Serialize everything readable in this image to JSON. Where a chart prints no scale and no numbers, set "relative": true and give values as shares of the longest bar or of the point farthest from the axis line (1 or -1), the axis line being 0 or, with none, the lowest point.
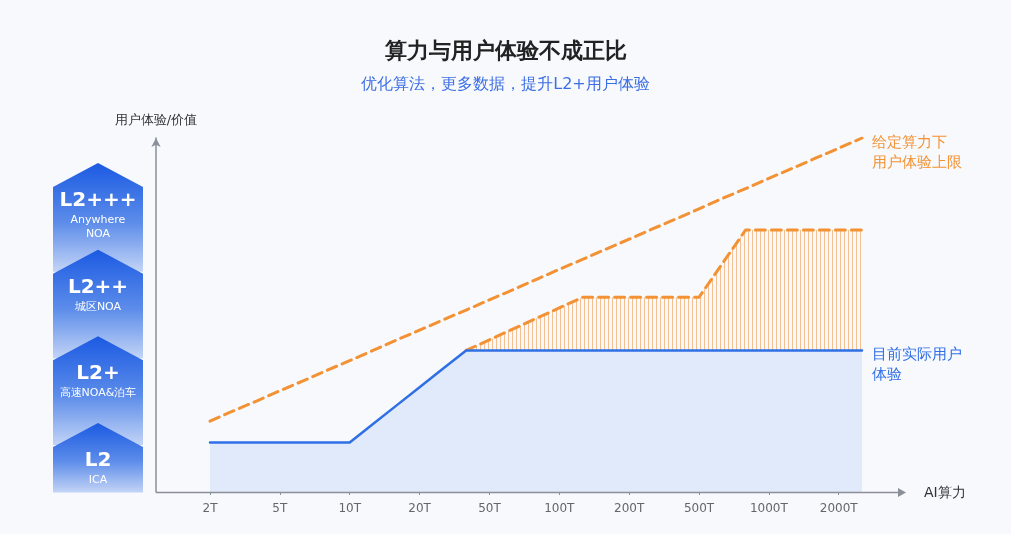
{
  "chart_data": {
    "type": "area",
    "relative": true,
    "title": "算力与用户体验不成正比",
    "subtitle": "优化算法，更多数据，提升L2+用户体验",
    "xlabel": "AI算力",
    "ylabel": "用户体验/价值",
    "categories": [
      "2T",
      null,
      null,
      "5T",
      null,
      null,
      "10T",
      null,
      null,
      "20T",
      null,
      null,
      "50T",
      null,
      null,
      "100T",
      null,
      null,
      "200T",
      null,
      null,
      "500T",
      null,
      null,
      "1000T",
      null,
      null,
      "2000T",
      null
    ],
    "series": [
      {
        "color": "#f39234",
        "line_style": "dashed",
        "values": [
          null,
          null,
          null,
          null,
          null,
          null,
          null,
          null,
          null,
          null,
          null,
          0.4,
          0.43,
          0.46,
          0.49,
          0.52,
          0.55,
          0.55,
          0.55,
          0.55,
          0.55,
          0.55,
          0.645,
          0.74,
          0.74,
          0.74,
          0.74,
          0.74,
          0.74
        ]
      },
      {
        "name": "目前实际用户体验",
        "color": "#2f6fe6",
        "line_style": "solid",
        "values": [
          0.14,
          0.14,
          0.14,
          0.14,
          0.14,
          0.14,
          0.14,
          0.192,
          0.244,
          0.296,
          0.348,
          0.4,
          0.4,
          0.4,
          0.4,
          0.4,
          0.4,
          0.4,
          0.4,
          0.4,
          0.4,
          0.4,
          0.4,
          0.4,
          0.4,
          0.4,
          0.4,
          0.4,
          0.4
        ]
      },
      {
        "type": "line",
        "name": "给定算力下用户体验上限",
        "color": "#f39234",
        "line_style": "dashed",
        "values": [
          0.2,
          0.229,
          0.257,
          0.286,
          0.314,
          0.343,
          0.371,
          0.4,
          0.429,
          0.457,
          0.486,
          0.514,
          0.543,
          0.571,
          0.6,
          0.629,
          0.657,
          0.686,
          0.714,
          0.743,
          0.771,
          0.8,
          0.829,
          0.857,
          0.886,
          0.914,
          0.943,
          0.971,
          1
        ]
      }
    ],
    "annotations": [
      "L2+++",
      "Anywhere NOA",
      "L2++",
      "城区NOA",
      "L2+",
      "高速NOA&泊车",
      "L2",
      "ICA"
    ],
    "marker": "none",
    "legend": false,
    "grid": false,
    "tick_labels": "x"
  }
}
